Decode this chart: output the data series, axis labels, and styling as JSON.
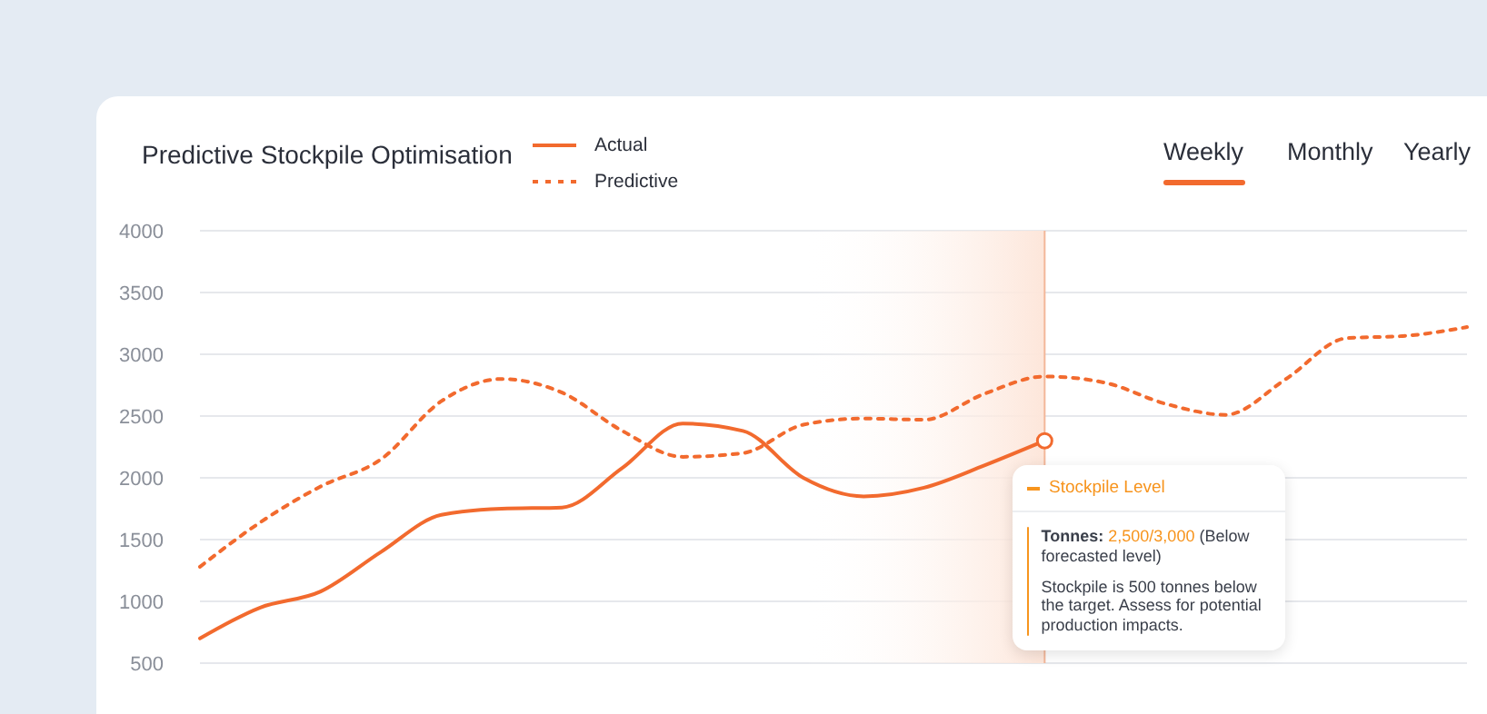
{
  "chart_data": {
    "type": "line",
    "title": "Predictive Stockpile Optimisation",
    "categories": [
      null,
      null,
      null,
      null,
      null,
      null,
      null,
      null,
      null,
      null,
      null,
      null,
      null,
      null,
      null,
      null,
      null,
      null,
      null,
      null,
      null,
      null
    ],
    "series": [
      {
        "name": "Actual",
        "color": "#f26a2e",
        "line_style": "solid",
        "values": [
          700,
          950,
          1080,
          1400,
          1700,
          1750,
          1760,
          2080,
          2440,
          2380,
          2000,
          1850,
          1920,
          2100,
          2300,
          null,
          null,
          null,
          null,
          null,
          null,
          null
        ]
      },
      {
        "name": "Predictive",
        "color": "#f26a2e",
        "line_style": "dotted",
        "values": [
          1280,
          1640,
          1930,
          2150,
          2620,
          2800,
          2690,
          2380,
          2170,
          2200,
          2430,
          2480,
          2470,
          2680,
          2820,
          2770,
          2600,
          2510,
          2800,
          3130,
          3150,
          3220
        ]
      }
    ],
    "ylim": [
      500,
      4000
    ],
    "yticks": [
      500,
      1000,
      1500,
      2000,
      2500,
      3000,
      3500,
      4000
    ],
    "grid": "y",
    "legend": "top",
    "marker": "none",
    "annotations": [
      "Stockpile Level",
      "Tonnes:",
      "2,500/3,000",
      "(Below forecasted level)",
      "Stockpile is 500 tonnes below the target. Assess for potential production impacts.",
      "Weekly",
      "Monthly",
      "Yearly"
    ]
  }
}
